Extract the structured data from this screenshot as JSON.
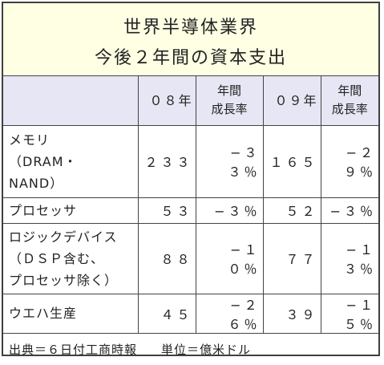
{
  "title": {
    "line1": "世界半導体業界",
    "line2": "今後２年間の資本支出"
  },
  "table": {
    "headers": [
      "",
      "０８年",
      "年間\n成長率",
      "０９年",
      "年間\n成長率"
    ],
    "rows": [
      {
        "label": "メモリ\n（DRAM・\nNAND）",
        "y08": "２３３",
        "g08": "−３３％",
        "y09": "１６５",
        "g09": "−２９％"
      },
      {
        "label": "プロセッサ",
        "y08": "５３",
        "g08": "−３％",
        "y09": "５２",
        "g09": "−３％"
      },
      {
        "label": "ロジックデバイス\n（ＤＳＰ含む、\nプロセッサ除く）",
        "y08": "８８",
        "g08": "−１０％",
        "y09": "７７",
        "g09": "−１３％"
      },
      {
        "label": "ウエハ生産",
        "y08": "４５",
        "g08": "−２６％",
        "y09": "３９",
        "g09": "−１５％"
      }
    ]
  },
  "footer": {
    "source": "出典＝６日付工商時報",
    "unit": "単位＝億米ドル"
  },
  "colors": {
    "title_bg": "#ffffe4",
    "header_bg": "#e6e6f4",
    "border": "#444444"
  }
}
